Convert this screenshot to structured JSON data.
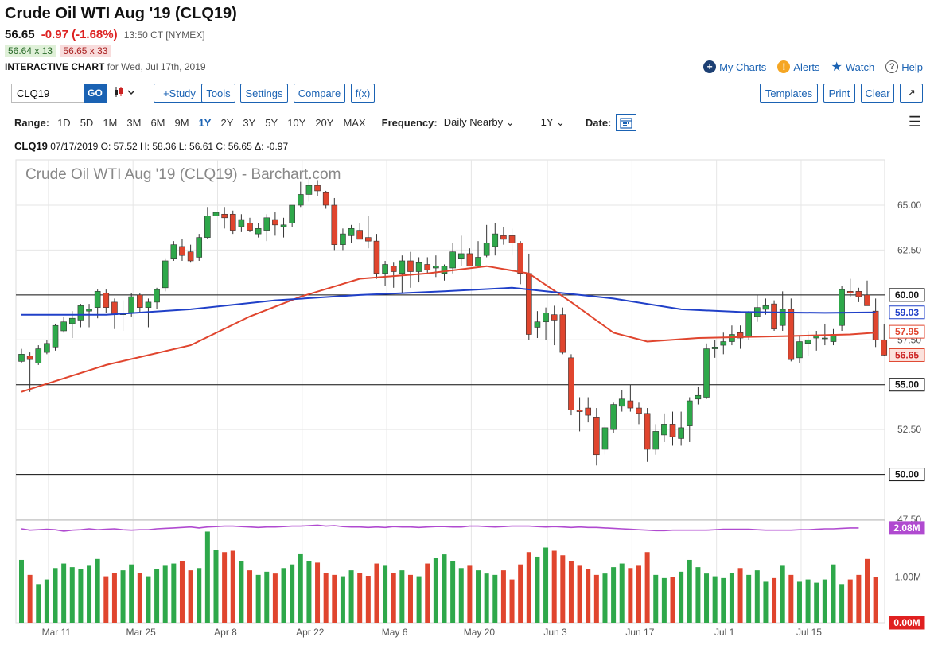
{
  "header": {
    "title": "Crude Oil WTI Aug '19 (CLQ19)",
    "last": "56.65",
    "change": "-0.97 (-1.68%)",
    "time": "13:50 CT [NYMEX]",
    "bid": "56.64 x 13",
    "ask": "56.65 x 33",
    "chart_label": "INTERACTIVE CHART",
    "chart_date": "for Wed, Jul 17th, 2019"
  },
  "links": {
    "my_charts": "My Charts",
    "alerts": "Alerts",
    "watch": "Watch",
    "help": "Help"
  },
  "toolbar": {
    "symbol_value": "CLQ19",
    "go": "GO",
    "study": "+Study",
    "tools": "Tools",
    "settings": "Settings",
    "compare": "Compare",
    "fx": "f(x)",
    "templates": "Templates",
    "print": "Print",
    "clear": "Clear",
    "expand": "↗"
  },
  "range": {
    "label": "Range:",
    "options": [
      "1D",
      "5D",
      "1M",
      "3M",
      "6M",
      "9M",
      "1Y",
      "2Y",
      "3Y",
      "5Y",
      "10Y",
      "20Y",
      "MAX"
    ],
    "active": "1Y",
    "frequency_label": "Frequency:",
    "frequency_value": "Daily Nearby",
    "period_value": "1Y",
    "date_label": "Date:"
  },
  "ohlc_line": {
    "symbol": "CLQ19",
    "text": "07/17/2019 O: 57.52 H: 58.36 L: 56.61 C: 56.65 Δ: -0.97"
  },
  "colors": {
    "up": "#2ea84a",
    "down": "#e0452e",
    "ma_short": "#e0452e",
    "ma_long": "#2040c8",
    "volume_ma": "#b04ad0"
  },
  "chart_data": {
    "type": "candlestick",
    "title": "Crude Oil WTI Aug '19 (CLQ19) - Barchart.com",
    "y_ticks": [
      "65.00",
      "62.50",
      "60.00",
      "57.50",
      "55.00",
      "52.50",
      "50.00",
      "47.50"
    ],
    "ylim": [
      46.8,
      67.0
    ],
    "x_ticks": [
      {
        "label": "Mar 11",
        "idx": 3
      },
      {
        "label": "Mar 25",
        "idx": 13
      },
      {
        "label": "Apr 8",
        "idx": 23
      },
      {
        "label": "Apr 22",
        "idx": 33
      },
      {
        "label": "May 6",
        "idx": 43
      },
      {
        "label": "May 20",
        "idx": 53
      },
      {
        "label": "Jun 3",
        "idx": 62
      },
      {
        "label": "Jun 17",
        "idx": 72
      },
      {
        "label": "Jul 1",
        "idx": 82
      },
      {
        "label": "Jul 15",
        "idx": 92
      }
    ],
    "horizontal_lines": [
      60.0,
      55.0,
      50.0
    ],
    "price_tags": [
      {
        "value": 60.0,
        "label": "60.00",
        "style": "black"
      },
      {
        "value": 59.03,
        "label": "59.03",
        "style": "blue"
      },
      {
        "value": 57.95,
        "label": "57.95",
        "style": "red"
      },
      {
        "value": 56.65,
        "label": "56.65",
        "style": "redfill"
      },
      {
        "value": 55.0,
        "label": "55.00",
        "style": "black"
      },
      {
        "value": 50.0,
        "label": "50.00",
        "style": "black"
      }
    ],
    "candles": [
      [
        56.3,
        57.0,
        56.2,
        56.7
      ],
      [
        56.6,
        56.8,
        54.6,
        56.4
      ],
      [
        56.2,
        57.2,
        56.1,
        57.0
      ],
      [
        56.8,
        57.5,
        56.7,
        57.3
      ],
      [
        57.1,
        58.4,
        56.9,
        58.3
      ],
      [
        58.0,
        58.8,
        57.9,
        58.5
      ],
      [
        58.4,
        59.1,
        57.6,
        58.7
      ],
      [
        58.6,
        59.5,
        58.2,
        59.4
      ],
      [
        59.1,
        59.5,
        58.2,
        59.2
      ],
      [
        59.3,
        60.3,
        58.7,
        60.2
      ],
      [
        60.1,
        60.3,
        59.0,
        59.3
      ],
      [
        59.6,
        59.8,
        58.1,
        58.9
      ],
      [
        58.9,
        59.7,
        58.0,
        59.0
      ],
      [
        59.0,
        60.1,
        58.8,
        59.9
      ],
      [
        60.0,
        60.1,
        59.0,
        59.3
      ],
      [
        59.3,
        59.8,
        58.2,
        59.6
      ],
      [
        59.6,
        60.4,
        59.2,
        60.3
      ],
      [
        60.4,
        62.0,
        60.2,
        61.9
      ],
      [
        62.0,
        63.0,
        61.9,
        62.8
      ],
      [
        62.7,
        63.1,
        61.9,
        62.2
      ],
      [
        62.4,
        62.8,
        61.8,
        61.9
      ],
      [
        62.1,
        63.4,
        61.9,
        63.2
      ],
      [
        63.2,
        64.9,
        63.1,
        64.4
      ],
      [
        64.4,
        64.6,
        63.3,
        64.6
      ],
      [
        64.5,
        64.9,
        63.7,
        64.3
      ],
      [
        64.5,
        64.7,
        63.4,
        63.6
      ],
      [
        63.8,
        64.5,
        63.5,
        64.2
      ],
      [
        64.0,
        64.3,
        63.5,
        63.6
      ],
      [
        63.4,
        64.0,
        63.2,
        63.7
      ],
      [
        63.6,
        64.5,
        63.0,
        64.3
      ],
      [
        64.2,
        64.6,
        63.3,
        63.9
      ],
      [
        63.8,
        64.3,
        63.2,
        63.9
      ],
      [
        64.0,
        65.0,
        63.8,
        65.0
      ],
      [
        65.0,
        66.3,
        64.9,
        65.6
      ],
      [
        65.6,
        66.5,
        65.2,
        66.1
      ],
      [
        66.1,
        66.4,
        65.5,
        65.8
      ],
      [
        65.7,
        65.8,
        64.8,
        65.0
      ],
      [
        65.0,
        65.4,
        62.5,
        62.8
      ],
      [
        62.8,
        63.7,
        62.5,
        63.4
      ],
      [
        63.3,
        63.9,
        62.9,
        63.7
      ],
      [
        63.6,
        64.0,
        63.1,
        63.1
      ],
      [
        63.2,
        64.4,
        62.6,
        63.0
      ],
      [
        63.0,
        63.4,
        60.9,
        61.2
      ],
      [
        61.2,
        61.9,
        60.5,
        61.7
      ],
      [
        61.6,
        61.8,
        60.4,
        61.3
      ],
      [
        61.2,
        62.2,
        60.1,
        61.9
      ],
      [
        61.9,
        62.4,
        60.4,
        61.3
      ],
      [
        61.3,
        62.1,
        60.7,
        61.8
      ],
      [
        61.7,
        62.1,
        61.2,
        61.4
      ],
      [
        61.5,
        62.2,
        61.0,
        61.6
      ],
      [
        61.2,
        61.7,
        60.8,
        61.6
      ],
      [
        61.5,
        62.9,
        61.2,
        62.4
      ],
      [
        62.0,
        63.3,
        61.6,
        62.3
      ],
      [
        62.3,
        62.6,
        61.6,
        61.6
      ],
      [
        61.6,
        63.0,
        61.5,
        62.1
      ],
      [
        62.2,
        63.9,
        62.1,
        62.9
      ],
      [
        62.7,
        64.0,
        62.2,
        63.4
      ],
      [
        63.3,
        63.8,
        62.8,
        63.1
      ],
      [
        63.3,
        63.7,
        62.2,
        62.9
      ],
      [
        62.9,
        63.0,
        60.6,
        61.2
      ],
      [
        61.2,
        62.3,
        57.5,
        57.8
      ],
      [
        58.2,
        59.1,
        57.6,
        58.5
      ],
      [
        58.5,
        59.3,
        57.5,
        59.0
      ],
      [
        58.9,
        59.4,
        57.2,
        58.6
      ],
      [
        58.9,
        59.3,
        56.7,
        56.8
      ],
      [
        56.5,
        56.7,
        53.3,
        53.6
      ],
      [
        53.6,
        54.3,
        52.4,
        53.5
      ],
      [
        53.7,
        54.3,
        52.9,
        53.3
      ],
      [
        53.2,
        53.7,
        50.5,
        51.1
      ],
      [
        51.4,
        52.8,
        51.1,
        52.6
      ],
      [
        52.5,
        54.0,
        52.3,
        53.9
      ],
      [
        53.8,
        54.7,
        53.5,
        54.2
      ],
      [
        54.1,
        55.0,
        53.5,
        53.7
      ],
      [
        53.7,
        54.0,
        52.8,
        53.4
      ],
      [
        53.4,
        53.7,
        50.7,
        51.4
      ],
      [
        51.4,
        52.8,
        51.1,
        52.4
      ],
      [
        52.2,
        53.4,
        51.8,
        52.8
      ],
      [
        52.8,
        53.5,
        51.6,
        52.1
      ],
      [
        52.0,
        53.5,
        51.6,
        52.6
      ],
      [
        52.7,
        54.3,
        51.8,
        54.1
      ],
      [
        54.2,
        54.9,
        53.9,
        54.4
      ],
      [
        54.3,
        57.3,
        54.2,
        57.0
      ],
      [
        57.0,
        57.5,
        56.5,
        57.1
      ],
      [
        57.2,
        57.9,
        56.7,
        57.4
      ],
      [
        57.4,
        58.3,
        57.2,
        57.8
      ],
      [
        57.9,
        58.3,
        57.0,
        57.6
      ],
      [
        57.7,
        59.1,
        57.5,
        59.0
      ],
      [
        58.8,
        60.0,
        58.5,
        59.3
      ],
      [
        59.2,
        59.8,
        58.9,
        59.4
      ],
      [
        59.5,
        59.7,
        58.0,
        58.1
      ],
      [
        58.3,
        60.2,
        58.0,
        59.2
      ],
      [
        59.2,
        59.8,
        56.3,
        56.4
      ],
      [
        56.5,
        57.7,
        56.2,
        57.4
      ],
      [
        57.3,
        58.0,
        56.6,
        57.5
      ],
      [
        57.6,
        58.0,
        56.9,
        57.7
      ],
      [
        57.6,
        58.4,
        57.2,
        57.6
      ],
      [
        57.4,
        58.1,
        57.2,
        57.8
      ],
      [
        58.3,
        60.5,
        58.0,
        60.3
      ],
      [
        60.2,
        60.9,
        59.9,
        60.1
      ],
      [
        60.2,
        60.4,
        59.6,
        59.9
      ],
      [
        60.0,
        60.8,
        59.5,
        59.4
      ],
      [
        59.1,
        59.8,
        57.1,
        57.5
      ],
      [
        57.5,
        58.4,
        56.6,
        56.65
      ]
    ],
    "series": [
      {
        "name": "MA short",
        "points": [
          [
            0,
            54.6
          ],
          [
            10,
            56.1
          ],
          [
            20,
            57.2
          ],
          [
            27,
            58.8
          ],
          [
            33,
            59.9
          ],
          [
            40,
            60.9
          ],
          [
            48,
            61.2
          ],
          [
            55,
            61.6
          ],
          [
            60,
            61.2
          ],
          [
            65,
            59.6
          ],
          [
            70,
            57.9
          ],
          [
            74,
            57.4
          ],
          [
            80,
            57.6
          ],
          [
            90,
            57.7
          ],
          [
            98,
            57.8
          ],
          [
            101,
            57.9
          ]
        ]
      },
      {
        "name": "MA long",
        "points": [
          [
            0,
            58.9
          ],
          [
            10,
            58.9
          ],
          [
            20,
            59.2
          ],
          [
            30,
            59.7
          ],
          [
            40,
            60.0
          ],
          [
            50,
            60.2
          ],
          [
            58,
            60.4
          ],
          [
            62,
            60.2
          ],
          [
            70,
            59.8
          ],
          [
            78,
            59.2
          ],
          [
            85,
            59.05
          ],
          [
            95,
            59.0
          ],
          [
            101,
            59.03
          ]
        ]
      }
    ],
    "volume": {
      "ticks": [
        "2.08M",
        "1.00M",
        "0.00M"
      ],
      "max": 2.2,
      "values": [
        1.38,
        1.05,
        0.85,
        0.95,
        1.2,
        1.3,
        1.22,
        1.18,
        1.25,
        1.4,
        1.02,
        1.1,
        1.15,
        1.28,
        1.1,
        1.02,
        1.18,
        1.25,
        1.3,
        1.35,
        1.15,
        1.2,
        2.0,
        1.6,
        1.55,
        1.58,
        1.35,
        1.15,
        1.05,
        1.12,
        1.08,
        1.2,
        1.28,
        1.52,
        1.35,
        1.32,
        1.1,
        1.05,
        1.02,
        1.15,
        1.1,
        1.03,
        1.3,
        1.25,
        1.1,
        1.15,
        1.05,
        1.02,
        1.3,
        1.42,
        1.5,
        1.35,
        1.2,
        1.25,
        1.15,
        1.08,
        1.05,
        1.15,
        0.95,
        1.28,
        1.55,
        1.45,
        1.65,
        1.58,
        1.48,
        1.35,
        1.25,
        1.18,
        1.05,
        1.08,
        1.22,
        1.3,
        1.2,
        1.25,
        1.55,
        1.05,
        0.98,
        1.0,
        1.12,
        1.38,
        1.22,
        1.08,
        1.02,
        0.98,
        1.1,
        1.2,
        1.05,
        1.15,
        0.9,
        0.98,
        1.25,
        1.05,
        0.9,
        0.95,
        0.88,
        0.95,
        1.28,
        0.85,
        0.95,
        1.05,
        1.4,
        1.0
      ],
      "ma": [
        2.06,
        2.03,
        2.04,
        2.05,
        2.04,
        2.01,
        2.03,
        2.04,
        2.06,
        2.04,
        2.05,
        2.06,
        2.04,
        2.03,
        2.04,
        2.04,
        2.06,
        2.07,
        2.08,
        2.09,
        2.1,
        2.08,
        2.1,
        2.11,
        2.12,
        2.12,
        2.11,
        2.1,
        2.09,
        2.1,
        2.1,
        2.11,
        2.12,
        2.12,
        2.13,
        2.14,
        2.12,
        2.13,
        2.11,
        2.1,
        2.1,
        2.09,
        2.1,
        2.09,
        2.11,
        2.1,
        2.1,
        2.09,
        2.1,
        2.11,
        2.11,
        2.1,
        2.1,
        2.12,
        2.12,
        2.11,
        2.1,
        2.11,
        2.12,
        2.12,
        2.12,
        2.11,
        2.1,
        2.11,
        2.1,
        2.09,
        2.1,
        2.09,
        2.09,
        2.08,
        2.07,
        2.06,
        2.05,
        2.04,
        2.03,
        2.02,
        2.02,
        2.03,
        2.03,
        2.03,
        2.03,
        2.03,
        2.04,
        2.05,
        2.05,
        2.05,
        2.05,
        2.04,
        2.03,
        2.03,
        2.03,
        2.03,
        2.04,
        2.04,
        2.05,
        2.06,
        2.06,
        2.07,
        2.08,
        2.08
      ]
    }
  }
}
